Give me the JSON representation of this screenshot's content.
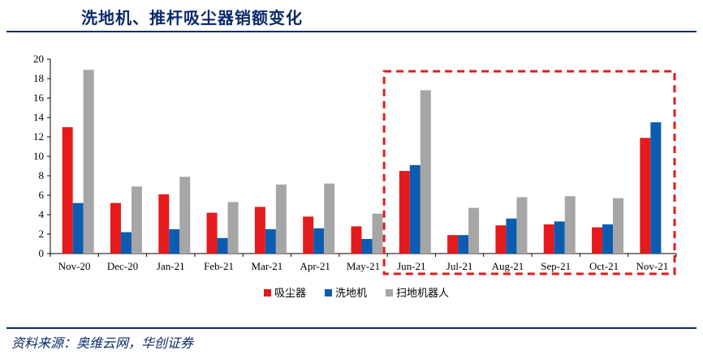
{
  "title": "洗地机、推杆吸尘器销额变化",
  "source": "资料来源：奥维云网，华创证券",
  "colors": {
    "vacuum": "#e41a1c",
    "floor_washer": "#0b5cb0",
    "robot": "#a6a6a6",
    "highlight": "#e41a1c",
    "brand": "#0b2a6b"
  },
  "chart_data": {
    "type": "bar",
    "categories": [
      "Nov-20",
      "Dec-20",
      "Jan-21",
      "Feb-21",
      "Mar-21",
      "Apr-21",
      "May-21",
      "Jun-21",
      "Jul-21",
      "Aug-21",
      "Sep-21",
      "Oct-21",
      "Nov-21"
    ],
    "series": [
      {
        "name": "吸尘器",
        "values": [
          13.0,
          5.2,
          6.1,
          4.2,
          4.8,
          3.8,
          2.8,
          8.5,
          1.9,
          2.9,
          3.0,
          2.7,
          11.9
        ]
      },
      {
        "name": "洗地机",
        "values": [
          5.2,
          2.2,
          2.5,
          1.6,
          2.5,
          2.6,
          1.5,
          9.1,
          1.9,
          3.6,
          3.3,
          3.0,
          13.5
        ]
      },
      {
        "name": "扫地机器人",
        "values": [
          18.9,
          6.9,
          7.9,
          5.3,
          7.1,
          7.2,
          4.1,
          16.8,
          4.7,
          5.8,
          5.9,
          5.7,
          null
        ]
      }
    ],
    "ylim": [
      0,
      20
    ],
    "yticks": [
      "0",
      "2",
      "4",
      "6",
      "8",
      "10",
      "12",
      "14",
      "16",
      "18",
      "20"
    ],
    "highlight_range": [
      "Jun-21",
      "Nov-21"
    ],
    "legend_placement": "bottom-center",
    "grid": false
  }
}
